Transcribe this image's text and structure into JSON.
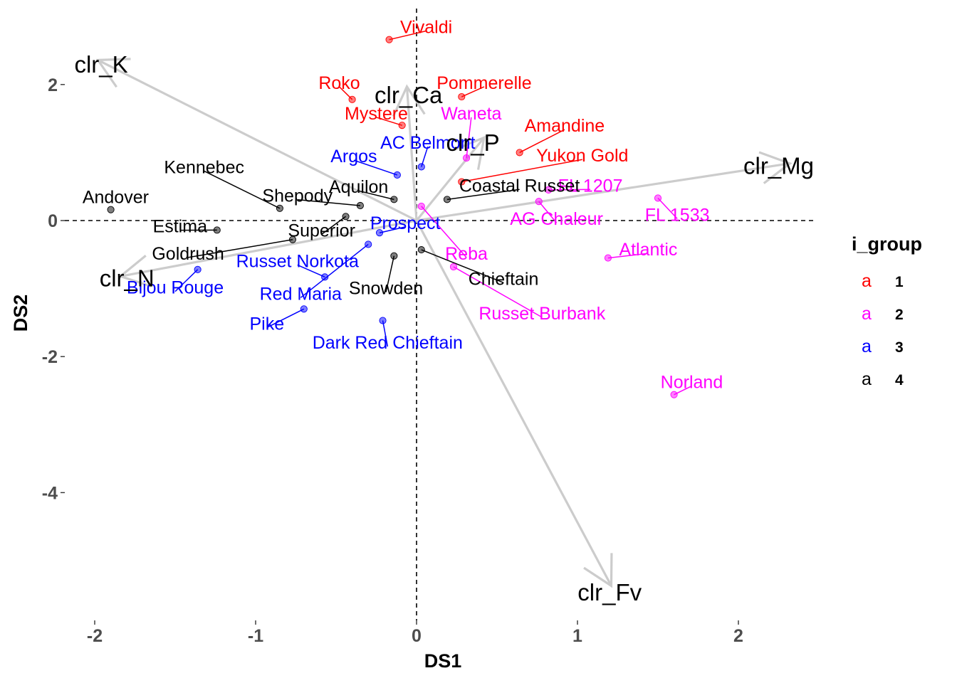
{
  "chart_data": {
    "type": "scatter",
    "xlabel": "DS1",
    "ylabel": "DS2",
    "xlim": [
      -2.2,
      2.5
    ],
    "ylim": [
      -5.9,
      3.0
    ],
    "x_ticks": [
      -2,
      -1,
      0,
      1,
      2
    ],
    "y_ticks": [
      -4,
      -2,
      0,
      2
    ],
    "grid": false,
    "reference_lines": {
      "x": 0,
      "y": 0,
      "style": "dashed"
    },
    "legend": {
      "title": "i_group",
      "placement": "right",
      "items": [
        {
          "name": "1",
          "key": "a",
          "color": "#ff0000"
        },
        {
          "name": "2",
          "key": "a",
          "color": "#ff00ff"
        },
        {
          "name": "3",
          "key": "a",
          "color": "#0000ff"
        },
        {
          "name": "4",
          "key": "a",
          "color": "#000000"
        }
      ]
    },
    "group_colors": {
      "1": "#ff0000",
      "2": "#ff00ff",
      "3": "#0000ff",
      "4": "#000000"
    },
    "points": [
      {
        "label": "Vivaldi",
        "group": "1",
        "x": -0.17,
        "y": 2.66,
        "lx": 0.06,
        "ly": 2.85
      },
      {
        "label": "Roko",
        "group": "1",
        "x": -0.4,
        "y": 1.78,
        "lx": -0.48,
        "ly": 2.03
      },
      {
        "label": "Pommerelle",
        "group": "1",
        "x": 0.28,
        "y": 1.82,
        "lx": 0.42,
        "ly": 2.03
      },
      {
        "label": "Mystere",
        "group": "1",
        "x": -0.09,
        "y": 1.4,
        "lx": -0.25,
        "ly": 1.58
      },
      {
        "label": "Amandine",
        "group": "1",
        "x": 0.64,
        "y": 1.0,
        "lx": 0.92,
        "ly": 1.4
      },
      {
        "label": "Yukon Gold",
        "group": "1",
        "x": 0.28,
        "y": 0.57,
        "lx": 1.03,
        "ly": 0.96
      },
      {
        "label": "Waneta",
        "group": "2",
        "x": 0.31,
        "y": 0.92,
        "lx": 0.34,
        "ly": 1.58
      },
      {
        "label": "FL 1207",
        "group": "2",
        "x": 0.82,
        "y": 0.45,
        "lx": 1.08,
        "ly": 0.52
      },
      {
        "label": "FL 1533",
        "group": "2",
        "x": 1.5,
        "y": 0.33,
        "lx": 1.62,
        "ly": 0.09
      },
      {
        "label": "AG Chaleur",
        "group": "2",
        "x": 0.76,
        "y": 0.28,
        "lx": 0.87,
        "ly": 0.03
      },
      {
        "label": "Atlantic",
        "group": "2",
        "x": 1.19,
        "y": -0.55,
        "lx": 1.44,
        "ly": -0.42
      },
      {
        "label": "Reba",
        "group": "2",
        "x": 0.03,
        "y": 0.21,
        "lx": 0.31,
        "ly": -0.48
      },
      {
        "label": "Russet Burbank",
        "group": "2",
        "x": 0.23,
        "y": -0.68,
        "lx": 0.78,
        "ly": -1.36
      },
      {
        "label": "Norland",
        "group": "2",
        "x": 1.6,
        "y": -2.56,
        "lx": 1.71,
        "ly": -2.37
      },
      {
        "label": "AC Belmont",
        "group": "3",
        "x": 0.03,
        "y": 0.79,
        "lx": 0.07,
        "ly": 1.15
      },
      {
        "label": "Argos",
        "group": "3",
        "x": -0.12,
        "y": 0.67,
        "lx": -0.39,
        "ly": 0.95
      },
      {
        "label": "Prospect",
        "group": "3",
        "x": -0.23,
        "y": -0.18,
        "lx": -0.07,
        "ly": -0.03
      },
      {
        "label": "Russet Norkota",
        "group": "3",
        "x": -0.57,
        "y": -0.83,
        "lx": -0.74,
        "ly": -0.59
      },
      {
        "label": "Red Maria",
        "group": "3",
        "x": -0.3,
        "y": -0.35,
        "lx": -0.72,
        "ly": -1.07
      },
      {
        "label": "Bijou Rouge",
        "group": "3",
        "x": -1.36,
        "y": -0.72,
        "lx": -1.5,
        "ly": -0.98
      },
      {
        "label": "Pike",
        "group": "3",
        "x": -0.7,
        "y": -1.3,
        "lx": -0.93,
        "ly": -1.51
      },
      {
        "label": "Dark Red Chieftain",
        "group": "3",
        "x": -0.21,
        "y": -1.47,
        "lx": -0.18,
        "ly": -1.79
      },
      {
        "label": "Andover",
        "group": "4",
        "x": -1.9,
        "y": 0.16,
        "lx": -1.87,
        "ly": 0.35
      },
      {
        "label": "Kennebec",
        "group": "4",
        "x": -0.85,
        "y": 0.18,
        "lx": -1.32,
        "ly": 0.79
      },
      {
        "label": "Shepody",
        "group": "4",
        "x": -0.35,
        "y": 0.22,
        "lx": -0.74,
        "ly": 0.37
      },
      {
        "label": "Aquilon",
        "group": "4",
        "x": -0.14,
        "y": 0.31,
        "lx": -0.36,
        "ly": 0.5
      },
      {
        "label": "Coastal Russet",
        "group": "4",
        "x": 0.19,
        "y": 0.31,
        "lx": 0.64,
        "ly": 0.52
      },
      {
        "label": "Estima",
        "group": "4",
        "x": -1.24,
        "y": -0.14,
        "lx": -1.47,
        "ly": -0.08
      },
      {
        "label": "Superior",
        "group": "4",
        "x": -0.44,
        "y": 0.06,
        "lx": -0.59,
        "ly": -0.14
      },
      {
        "label": "Goldrush",
        "group": "4",
        "x": -0.77,
        "y": -0.28,
        "lx": -1.42,
        "ly": -0.48
      },
      {
        "label": "Snowden",
        "group": "4",
        "x": -0.14,
        "y": -0.52,
        "lx": -0.19,
        "ly": -0.99
      },
      {
        "label": "Chieftain",
        "group": "4",
        "x": 0.03,
        "y": -0.43,
        "lx": 0.54,
        "ly": -0.85
      }
    ],
    "vectors": [
      {
        "label": "clr_K",
        "x": -1.98,
        "y": 2.36,
        "lx": -1.96,
        "ly": 2.3
      },
      {
        "label": "clr_Ca",
        "x": -0.06,
        "y": 1.97,
        "lx": -0.05,
        "ly": 1.85
      },
      {
        "label": "clr_P",
        "x": 0.42,
        "y": 1.22,
        "lx": 0.35,
        "ly": 1.15
      },
      {
        "label": "clr_Mg",
        "x": 2.32,
        "y": 0.84,
        "lx": 2.25,
        "ly": 0.81
      },
      {
        "label": "clr_N",
        "x": -1.84,
        "y": -0.82,
        "lx": -1.8,
        "ly": -0.84
      },
      {
        "label": "clr_Fv",
        "x": 1.21,
        "y": -5.37,
        "lx": 1.2,
        "ly": -5.46
      }
    ]
  }
}
